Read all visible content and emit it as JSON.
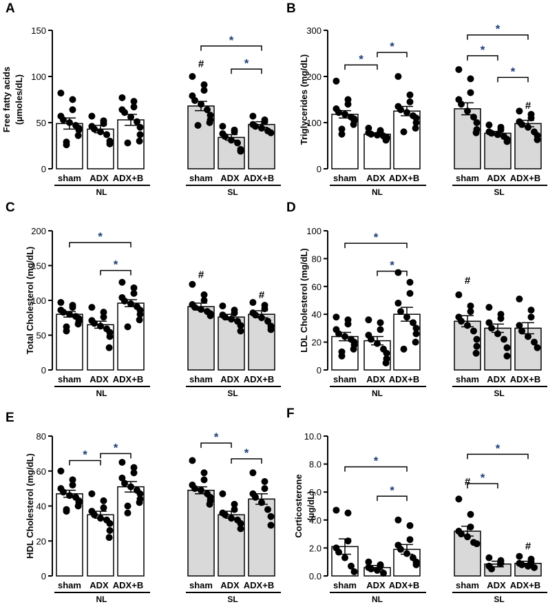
{
  "chart_data": [
    {
      "panel": "A",
      "type": "bar",
      "ylabel_lines": [
        "Free fatty  acids",
        "(µmoles/dL)"
      ],
      "ylim": [
        0,
        150
      ],
      "yticks": [
        "0",
        "50",
        "100",
        "150"
      ],
      "groups": [
        "NL",
        "SL"
      ],
      "categories": [
        "sham",
        "ADX",
        "ADX+B"
      ],
      "series": [
        {
          "group": "NL",
          "category": "sham",
          "mean": 49,
          "sem": 6,
          "points": [
            82,
            75,
            64,
            57,
            53,
            50,
            47,
            44,
            42,
            36,
            29,
            26
          ]
        },
        {
          "group": "NL",
          "category": "ADX",
          "mean": 43,
          "sem": 4,
          "points": [
            57,
            52,
            49,
            46,
            43,
            40,
            37,
            30,
            27
          ]
        },
        {
          "group": "NL",
          "category": "ADX+B",
          "mean": 53,
          "sem": 6,
          "points": [
            77,
            73,
            67,
            64,
            61,
            56,
            51,
            45,
            37,
            30,
            28
          ]
        },
        {
          "group": "SL",
          "category": "sham",
          "mean": 68,
          "sem": 5,
          "points": [
            100,
            91,
            85,
            79,
            74,
            70,
            64,
            58,
            53,
            50,
            47
          ]
        },
        {
          "group": "SL",
          "category": "ADX",
          "mean": 34,
          "sem": 3,
          "points": [
            46,
            42,
            40,
            38,
            35,
            31,
            28,
            21,
            19
          ]
        },
        {
          "group": "SL",
          "category": "ADX+B",
          "mean": 48,
          "sem": 3,
          "points": [
            57,
            53,
            51,
            48,
            46,
            44,
            41,
            39
          ]
        }
      ],
      "annotations": {
        "brackets": [
          {
            "from": [
              1,
              0
            ],
            "to": [
              1,
              2
            ],
            "level": 133,
            "text": "*"
          },
          {
            "from": [
              1,
              1
            ],
            "to": [
              1,
              2
            ],
            "level": 108,
            "text": "*"
          }
        ],
        "hash": [
          {
            "bar": [
              1,
              0
            ],
            "level": 110,
            "text": "#"
          }
        ]
      }
    },
    {
      "panel": "B",
      "type": "bar",
      "ylabel_lines": [
        "Triglycerides (mg/dL)"
      ],
      "ylim": [
        0,
        300
      ],
      "yticks": [
        "0",
        "100",
        "200",
        "300"
      ],
      "groups": [
        "NL",
        "SL"
      ],
      "categories": [
        "sham",
        "ADX",
        "ADX+B"
      ],
      "series": [
        {
          "group": "NL",
          "category": "sham",
          "mean": 118,
          "sem": 8,
          "points": [
            190,
            150,
            140,
            130,
            122,
            118,
            112,
            108,
            104,
            96,
            86,
            75
          ]
        },
        {
          "group": "NL",
          "category": "ADX",
          "mean": 75,
          "sem": 3,
          "points": [
            88,
            83,
            80,
            78,
            75,
            73,
            71,
            68,
            66,
            62
          ]
        },
        {
          "group": "NL",
          "category": "ADX+B",
          "mean": 125,
          "sem": 10,
          "points": [
            200,
            160,
            145,
            135,
            128,
            122,
            115,
            110,
            100,
            88,
            80
          ]
        },
        {
          "group": "SL",
          "category": "sham",
          "mean": 130,
          "sem": 13,
          "points": [
            215,
            195,
            165,
            150,
            140,
            125,
            112,
            100,
            85,
            78
          ]
        },
        {
          "group": "SL",
          "category": "ADX",
          "mean": 77,
          "sem": 4,
          "points": [
            95,
            90,
            85,
            80,
            77,
            74,
            70,
            64,
            59
          ]
        },
        {
          "group": "SL",
          "category": "ADX+B",
          "mean": 98,
          "sem": 7,
          "points": [
            125,
            118,
            110,
            102,
            96,
            90,
            80,
            72,
            63
          ]
        }
      ],
      "annotations": {
        "brackets": [
          {
            "from": [
              0,
              0
            ],
            "to": [
              0,
              1
            ],
            "level": 225,
            "text": "*"
          },
          {
            "from": [
              0,
              1
            ],
            "to": [
              0,
              2
            ],
            "level": 252,
            "text": "*"
          },
          {
            "from": [
              1,
              0
            ],
            "to": [
              1,
              2
            ],
            "level": 290,
            "text": "*"
          },
          {
            "from": [
              1,
              0
            ],
            "to": [
              1,
              1
            ],
            "level": 245,
            "text": "*"
          },
          {
            "from": [
              1,
              1
            ],
            "to": [
              1,
              2
            ],
            "level": 198,
            "text": "*"
          }
        ],
        "hash": [
          {
            "bar": [
              1,
              2
            ],
            "level": 130,
            "text": "#"
          }
        ]
      }
    },
    {
      "panel": "C",
      "type": "bar",
      "ylabel_lines": [
        "Total Cholesterol (mg/dL)"
      ],
      "ylim": [
        0,
        200
      ],
      "yticks": [
        "0",
        "50",
        "100",
        "150",
        "200"
      ],
      "groups": [
        "NL",
        "SL"
      ],
      "categories": [
        "sham",
        "ADX",
        "ADX+B"
      ],
      "series": [
        {
          "group": "NL",
          "category": "sham",
          "mean": 80,
          "sem": 4,
          "points": [
            97,
            93,
            90,
            86,
            83,
            80,
            77,
            74,
            70,
            66,
            62,
            56
          ]
        },
        {
          "group": "NL",
          "category": "ADX",
          "mean": 65,
          "sem": 5,
          "points": [
            90,
            83,
            76,
            71,
            67,
            63,
            59,
            54,
            48,
            32
          ]
        },
        {
          "group": "NL",
          "category": "ADX+B",
          "mean": 96,
          "sem": 5,
          "points": [
            126,
            118,
            110,
            104,
            99,
            95,
            91,
            86,
            80,
            72,
            62
          ]
        },
        {
          "group": "SL",
          "category": "sham",
          "mean": 91,
          "sem": 5,
          "points": [
            123,
            108,
            100,
            94,
            90,
            87,
            84,
            81,
            78
          ]
        },
        {
          "group": "SL",
          "category": "ADX",
          "mean": 76,
          "sem": 4,
          "points": [
            92,
            86,
            82,
            79,
            76,
            73,
            70,
            64,
            56
          ]
        },
        {
          "group": "SL",
          "category": "ADX+B",
          "mean": 80,
          "sem": 5,
          "points": [
            97,
            93,
            88,
            82,
            79,
            75,
            70,
            63,
            58
          ]
        }
      ],
      "annotations": {
        "brackets": [
          {
            "from": [
              0,
              0
            ],
            "to": [
              0,
              2
            ],
            "level": 183,
            "text": "*"
          },
          {
            "from": [
              0,
              1
            ],
            "to": [
              0,
              2
            ],
            "level": 143,
            "text": "*"
          }
        ],
        "hash": [
          {
            "bar": [
              1,
              0
            ],
            "level": 132,
            "text": "#"
          },
          {
            "bar": [
              1,
              2
            ],
            "level": 103,
            "text": "#"
          }
        ]
      }
    },
    {
      "panel": "D",
      "type": "bar",
      "ylabel_lines": [
        "LDL Cholesterol (mg/dL)"
      ],
      "ylim": [
        0,
        100
      ],
      "yticks": [
        "0",
        "20",
        "40",
        "60",
        "80",
        "100"
      ],
      "groups": [
        "NL",
        "SL"
      ],
      "categories": [
        "sham",
        "ADX",
        "ADX+B"
      ],
      "series": [
        {
          "group": "NL",
          "category": "sham",
          "mean": 24,
          "sem": 3,
          "points": [
            38,
            36,
            33,
            29,
            26,
            24,
            22,
            20,
            18,
            15,
            13,
            10
          ]
        },
        {
          "group": "NL",
          "category": "ADX",
          "mean": 21,
          "sem": 3,
          "points": [
            36,
            34,
            29,
            25,
            22,
            19,
            15,
            12,
            8,
            5
          ]
        },
        {
          "group": "NL",
          "category": "ADX+B",
          "mean": 40,
          "sem": 5,
          "points": [
            70,
            63,
            55,
            48,
            42,
            38,
            34,
            30,
            26,
            20,
            15
          ]
        },
        {
          "group": "SL",
          "category": "sham",
          "mean": 35,
          "sem": 4,
          "points": [
            54,
            46,
            42,
            38,
            35,
            32,
            28,
            22,
            17,
            12
          ]
        },
        {
          "group": "SL",
          "category": "ADX",
          "mean": 30,
          "sem": 3,
          "points": [
            45,
            40,
            37,
            34,
            30,
            26,
            22,
            16,
            10
          ]
        },
        {
          "group": "SL",
          "category": "ADX+B",
          "mean": 30,
          "sem": 4,
          "points": [
            51,
            43,
            38,
            32,
            28,
            24,
            20,
            16
          ]
        }
      ],
      "annotations": {
        "brackets": [
          {
            "from": [
              0,
              0
            ],
            "to": [
              0,
              2
            ],
            "level": 91,
            "text": "*"
          },
          {
            "from": [
              0,
              1
            ],
            "to": [
              0,
              2
            ],
            "level": 71,
            "text": "*"
          }
        ],
        "hash": [
          {
            "bar": [
              1,
              0
            ],
            "level": 62,
            "text": "#"
          }
        ]
      }
    },
    {
      "panel": "E",
      "type": "bar",
      "ylabel_lines": [
        "HDL Cholesterol (mg/dL)"
      ],
      "ylim": [
        0,
        80
      ],
      "yticks": [
        "0",
        "20",
        "40",
        "60",
        "80"
      ],
      "groups": [
        "NL",
        "SL"
      ],
      "categories": [
        "sham",
        "ADX",
        "ADX+B"
      ],
      "series": [
        {
          "group": "NL",
          "category": "sham",
          "mean": 47,
          "sem": 2,
          "points": [
            60,
            55,
            52,
            50,
            48,
            46,
            45,
            43,
            42,
            40,
            38,
            37
          ]
        },
        {
          "group": "NL",
          "category": "ADX",
          "mean": 35,
          "sem": 2,
          "points": [
            47,
            43,
            39,
            37,
            35,
            33,
            32,
            30,
            26,
            22
          ]
        },
        {
          "group": "NL",
          "category": "ADX+B",
          "mean": 51,
          "sem": 3,
          "points": [
            65,
            62,
            59,
            56,
            53,
            51,
            49,
            47,
            44,
            42,
            40,
            36
          ]
        },
        {
          "group": "SL",
          "category": "sham",
          "mean": 49,
          "sem": 2,
          "points": [
            66,
            59,
            55,
            52,
            50,
            49,
            47,
            45,
            43,
            41
          ]
        },
        {
          "group": "SL",
          "category": "ADX",
          "mean": 35,
          "sem": 2,
          "points": [
            47,
            41,
            38,
            36,
            35,
            33,
            32,
            30,
            27
          ]
        },
        {
          "group": "SL",
          "category": "ADX+B",
          "mean": 44,
          "sem": 3,
          "points": [
            59,
            54,
            50,
            47,
            45,
            42,
            38,
            34,
            29
          ]
        }
      ],
      "annotations": {
        "brackets": [
          {
            "from": [
              0,
              0
            ],
            "to": [
              0,
              1
            ],
            "level": 66,
            "text": "*"
          },
          {
            "from": [
              0,
              1
            ],
            "to": [
              0,
              2
            ],
            "level": 70,
            "text": "*"
          },
          {
            "from": [
              1,
              0
            ],
            "to": [
              1,
              1
            ],
            "level": 76,
            "text": "*"
          },
          {
            "from": [
              1,
              1
            ],
            "to": [
              1,
              2
            ],
            "level": 67,
            "text": "*"
          }
        ],
        "hash": []
      }
    },
    {
      "panel": "F",
      "type": "bar",
      "ylabel_lines": [
        "Corticosterone",
        "(µg/dL)"
      ],
      "ylim": [
        0,
        10
      ],
      "yticks": [
        "0.0",
        "2.0",
        "4.0",
        "6.0",
        "8.0",
        "10.0"
      ],
      "groups": [
        "NL",
        "SL"
      ],
      "categories": [
        "sham",
        "ADX",
        "ADX+B"
      ],
      "series": [
        {
          "group": "NL",
          "category": "sham",
          "mean": 2.1,
          "sem": 0.55,
          "points": [
            4.7,
            4.5,
            2.5,
            2.0,
            1.7,
            1.3,
            0.7,
            0.3
          ]
        },
        {
          "group": "NL",
          "category": "ADX",
          "mean": 0.6,
          "sem": 0.15,
          "points": [
            1.0,
            0.8,
            0.7,
            0.6,
            0.5,
            0.4,
            0.2
          ]
        },
        {
          "group": "NL",
          "category": "ADX+B",
          "mean": 1.9,
          "sem": 0.35,
          "points": [
            4.0,
            3.6,
            2.6,
            2.2,
            1.9,
            1.6,
            1.3,
            1.0,
            0.8
          ]
        },
        {
          "group": "SL",
          "category": "sham",
          "mean": 3.2,
          "sem": 0.35,
          "points": [
            5.5,
            4.4,
            3.5,
            3.2,
            3.0,
            2.8,
            2.4,
            2.3
          ]
        },
        {
          "group": "SL",
          "category": "ADX",
          "mean": 0.85,
          "sem": 0.2,
          "points": [
            1.3,
            1.1,
            0.9,
            0.7,
            0.5
          ]
        },
        {
          "group": "SL",
          "category": "ADX+B",
          "mean": 0.9,
          "sem": 0.15,
          "points": [
            1.4,
            1.2,
            1.0,
            0.9,
            0.8,
            0.7,
            0.6
          ]
        }
      ],
      "annotations": {
        "brackets": [
          {
            "from": [
              0,
              0
            ],
            "to": [
              0,
              2
            ],
            "level": 7.8,
            "text": "*"
          },
          {
            "from": [
              0,
              1
            ],
            "to": [
              0,
              2
            ],
            "level": 5.7,
            "text": "*"
          },
          {
            "from": [
              1,
              0
            ],
            "to": [
              1,
              2
            ],
            "level": 8.7,
            "text": "*"
          },
          {
            "from": [
              1,
              0
            ],
            "to": [
              1,
              1
            ],
            "level": 6.6,
            "text": "*"
          }
        ],
        "hash": [
          {
            "bar": [
              1,
              0
            ],
            "level": 6.5,
            "text": "#"
          },
          {
            "bar": [
              1,
              2
            ],
            "level": 1.9,
            "text": "#"
          }
        ]
      }
    }
  ]
}
